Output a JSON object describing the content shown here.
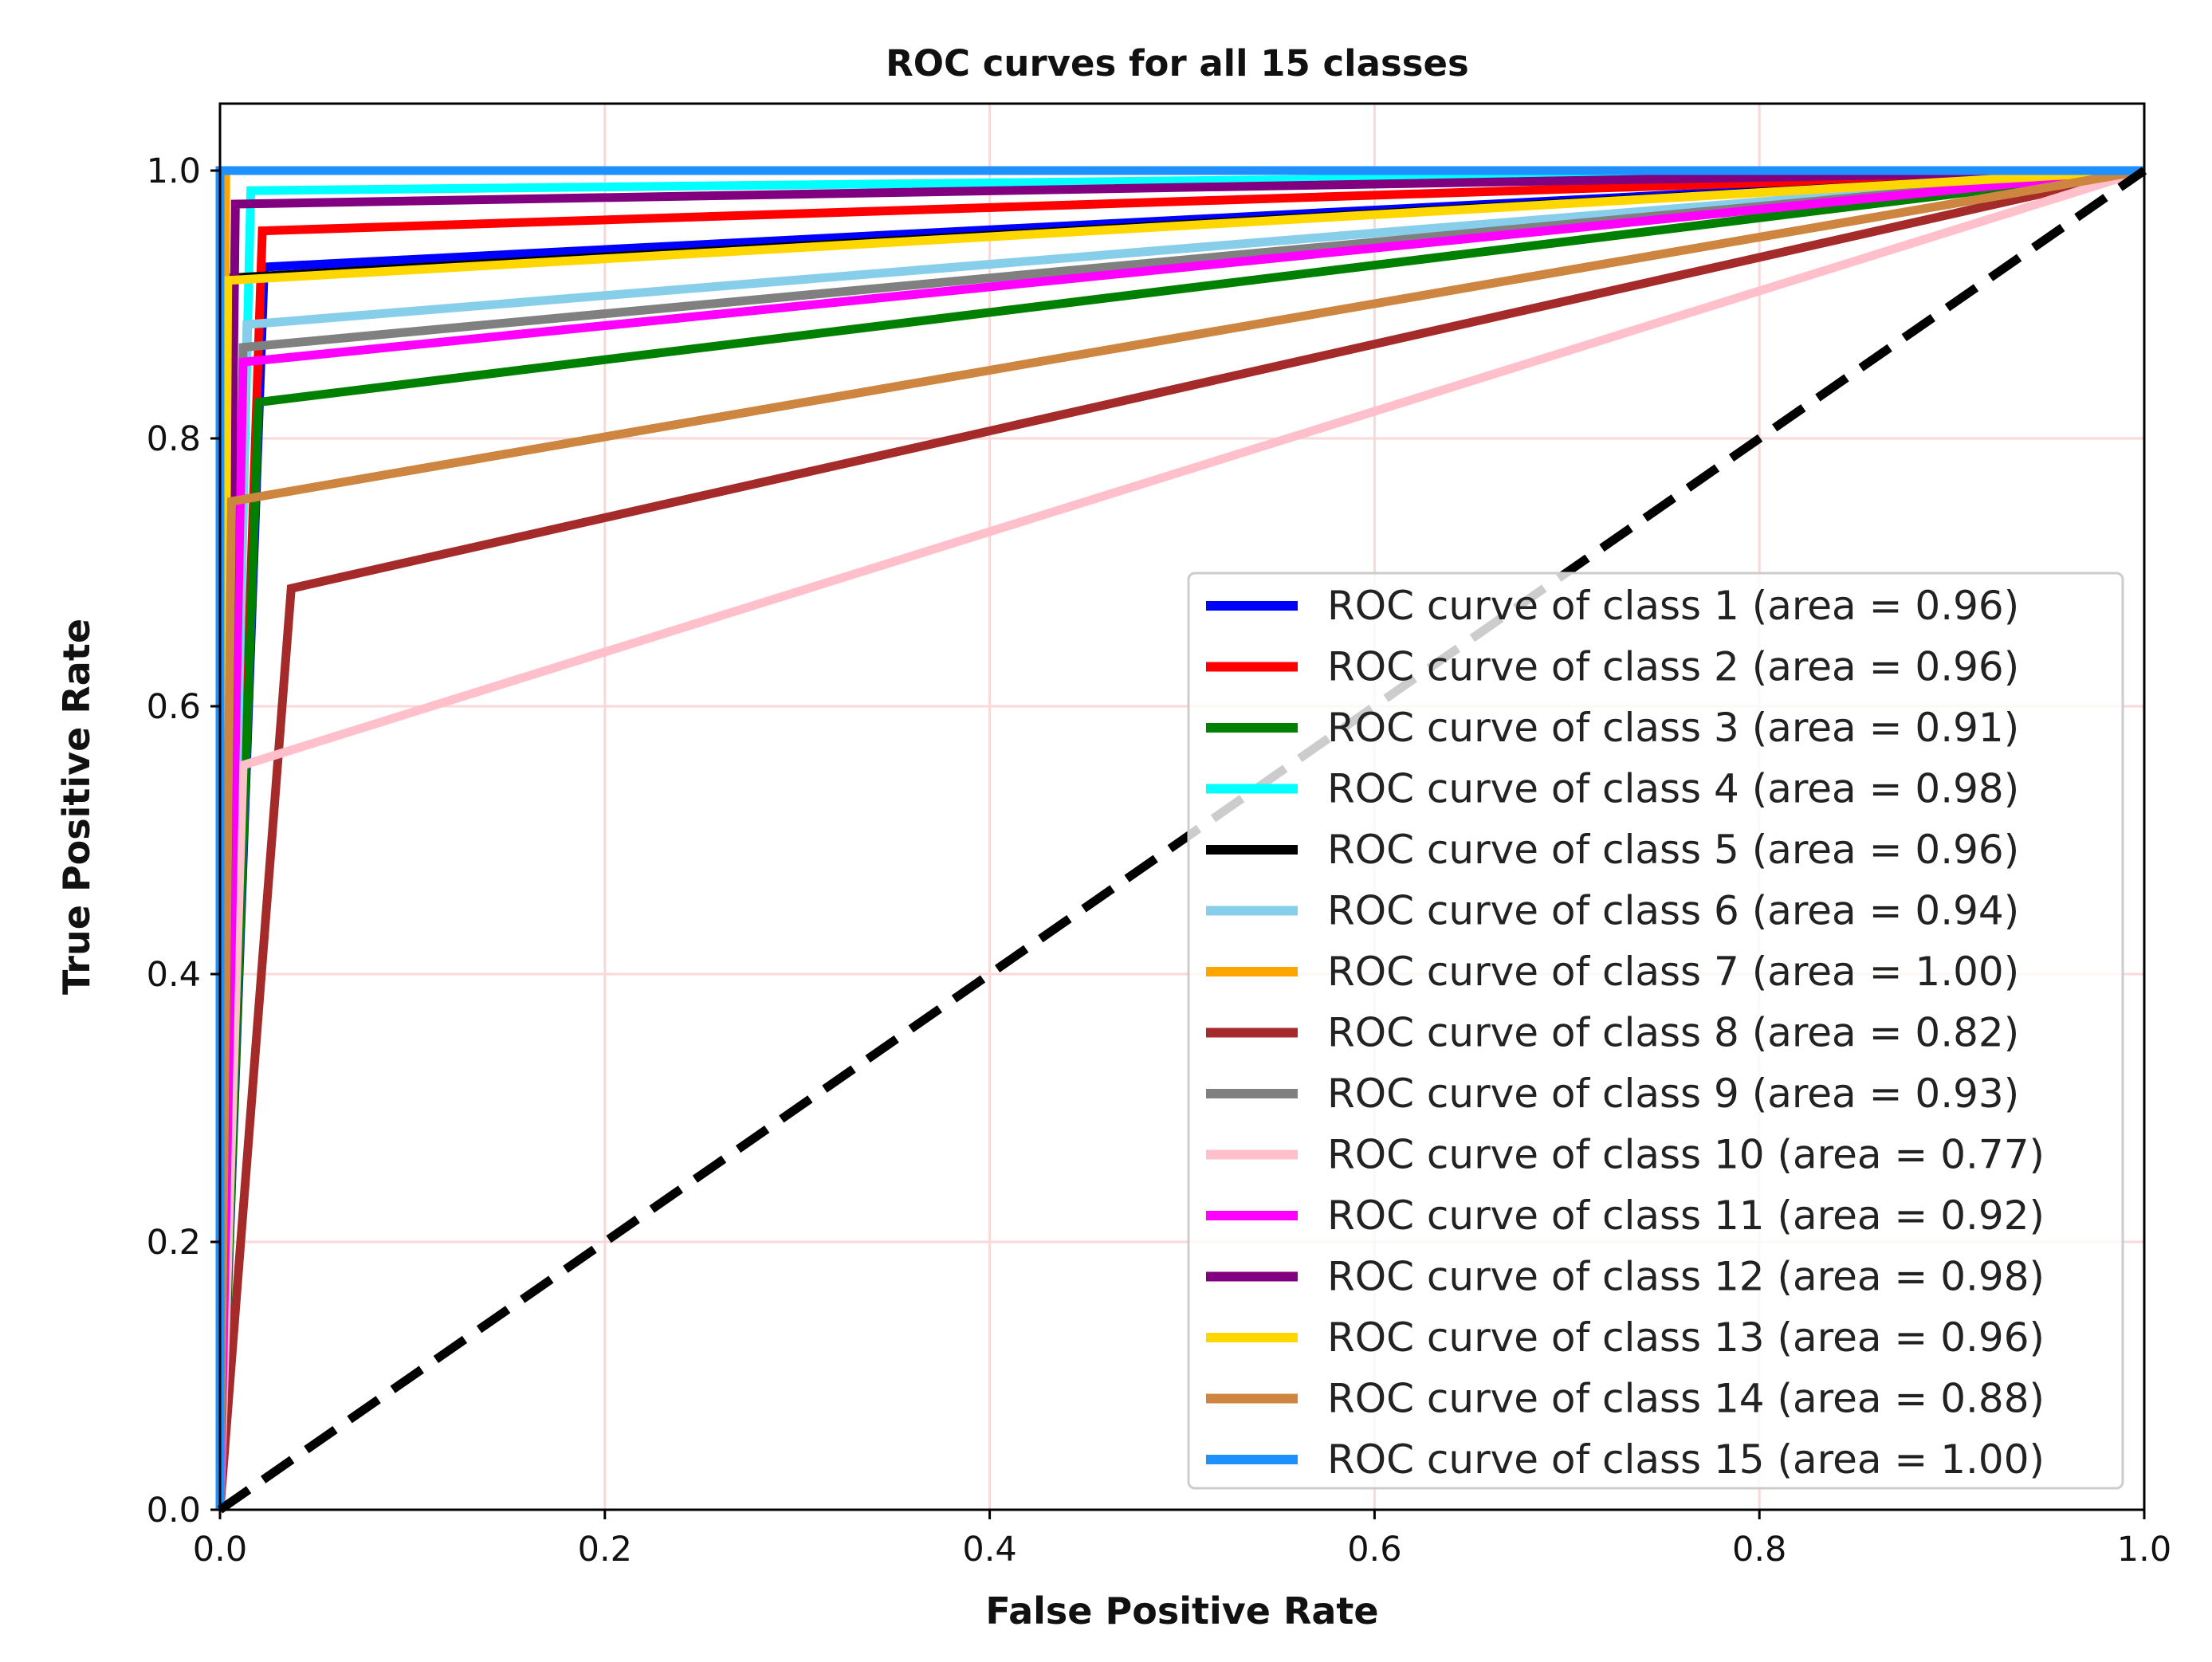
{
  "chart_data": {
    "type": "line",
    "title": "ROC curves for all 15 classes",
    "xlabel": "False Positive Rate",
    "ylabel": "True Positive Rate",
    "xlim": [
      0.0,
      1.0
    ],
    "ylim": [
      0.0,
      1.05
    ],
    "xticks": [
      0.0,
      0.2,
      0.4,
      0.6,
      0.8,
      1.0
    ],
    "yticks": [
      0.0,
      0.2,
      0.4,
      0.6,
      0.8,
      1.0
    ],
    "xtick_labels": [
      "0.0",
      "0.2",
      "0.4",
      "0.6",
      "0.8",
      "1.0"
    ],
    "ytick_labels": [
      "0.0",
      "0.2",
      "0.4",
      "0.6",
      "0.8",
      "1.0"
    ],
    "grid": true,
    "grid_color": "#f8d8d8",
    "legend_position": "lower-right",
    "chance_line": {
      "x": [
        0.0,
        1.0
      ],
      "y": [
        0.0,
        1.0
      ],
      "color": "#000000",
      "style": "dashed"
    },
    "series": [
      {
        "name": "ROC curve of class 1 (area = 0.96)",
        "color": "#0000ff",
        "x": [
          0.0,
          0.023,
          1.0
        ],
        "y": [
          0.0,
          0.928,
          1.0
        ]
      },
      {
        "name": "ROC curve of class 2 (area = 0.96)",
        "color": "#ff0000",
        "x": [
          0.0,
          0.022,
          1.0
        ],
        "y": [
          0.0,
          0.955,
          1.0
        ]
      },
      {
        "name": "ROC curve of class 3 (area = 0.91)",
        "color": "#008000",
        "x": [
          0.0,
          0.02,
          1.0
        ],
        "y": [
          0.0,
          0.827,
          1.0
        ]
      },
      {
        "name": "ROC curve of class 4 (area = 0.98)",
        "color": "#00ffff",
        "x": [
          0.0,
          0.016,
          1.0
        ],
        "y": [
          0.0,
          0.985,
          1.0
        ]
      },
      {
        "name": "ROC curve of class 5 (area = 0.96)",
        "color": "#000000",
        "x": [
          0.0,
          0.007,
          1.0
        ],
        "y": [
          0.0,
          0.92,
          1.0
        ]
      },
      {
        "name": "ROC curve of class 6 (area = 0.94)",
        "color": "#87ceeb",
        "x": [
          0.0,
          0.014,
          1.0
        ],
        "y": [
          0.0,
          0.885,
          1.0
        ]
      },
      {
        "name": "ROC curve of class 7 (area = 1.00)",
        "color": "#ffa500",
        "x": [
          0.0,
          0.003,
          1.0
        ],
        "y": [
          0.0,
          1.0,
          1.0
        ]
      },
      {
        "name": "ROC curve of class 8 (area = 0.82)",
        "color": "#a52a2a",
        "x": [
          0.0,
          0.037,
          1.0
        ],
        "y": [
          0.0,
          0.688,
          1.0
        ]
      },
      {
        "name": "ROC curve of class 9 (area = 0.93)",
        "color": "#808080",
        "x": [
          0.0,
          0.012,
          1.0
        ],
        "y": [
          0.0,
          0.868,
          1.0
        ]
      },
      {
        "name": "ROC curve of class 10 (area = 0.77)",
        "color": "#ffc0cb",
        "x": [
          0.0,
          0.012,
          1.0
        ],
        "y": [
          0.0,
          0.556,
          1.0
        ]
      },
      {
        "name": "ROC curve of class 11 (area = 0.92)",
        "color": "#ff00ff",
        "x": [
          0.0,
          0.012,
          1.0
        ],
        "y": [
          0.0,
          0.857,
          1.0
        ]
      },
      {
        "name": "ROC curve of class 12 (area = 0.98)",
        "color": "#800080",
        "x": [
          0.0,
          0.008,
          1.0
        ],
        "y": [
          0.0,
          0.975,
          1.0
        ]
      },
      {
        "name": "ROC curve of class 13 (area = 0.96)",
        "color": "#ffd700",
        "x": [
          0.0,
          0.004,
          1.0
        ],
        "y": [
          0.0,
          0.918,
          1.0
        ]
      },
      {
        "name": "ROC curve of class 14 (area = 0.88)",
        "color": "#cd853f",
        "x": [
          0.0,
          0.006,
          1.0
        ],
        "y": [
          0.0,
          0.753,
          1.0
        ]
      },
      {
        "name": "ROC curve of class 15 (area = 1.00)",
        "color": "#1e90ff",
        "x": [
          0.0,
          0.0,
          1.0
        ],
        "y": [
          0.0,
          1.0,
          1.0
        ]
      }
    ]
  }
}
